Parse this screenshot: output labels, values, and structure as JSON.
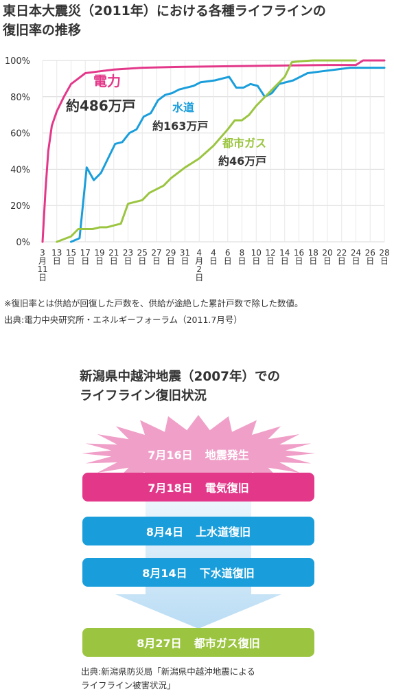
{
  "header": {
    "title_line1": "東日本大震災（2011年）における各種ライフラインの",
    "title_line2": "復旧率の推移"
  },
  "chart_data": {
    "type": "line",
    "title": "東日本大震災（2011年）における各種ライフラインの復旧率の推移",
    "y_ticks": [
      "0%",
      "20%",
      "40%",
      "60%",
      "80%",
      "100%"
    ],
    "ylim": [
      0,
      100
    ],
    "x_ticks": [
      {
        "day": 0,
        "label": "3月11日"
      },
      {
        "day": 2,
        "label": "13日"
      },
      {
        "day": 4,
        "label": "15日"
      },
      {
        "day": 6,
        "label": "17日"
      },
      {
        "day": 8,
        "label": "19日"
      },
      {
        "day": 10,
        "label": "21日"
      },
      {
        "day": 12,
        "label": "23日"
      },
      {
        "day": 14,
        "label": "25日"
      },
      {
        "day": 16,
        "label": "27日"
      },
      {
        "day": 18,
        "label": "29日"
      },
      {
        "day": 20,
        "label": "31日"
      },
      {
        "day": 22,
        "label": "4月2日"
      },
      {
        "day": 24,
        "label": "4日"
      },
      {
        "day": 26,
        "label": "6日"
      },
      {
        "day": 28,
        "label": "8日"
      },
      {
        "day": 30,
        "label": "10日"
      },
      {
        "day": 32,
        "label": "12日"
      },
      {
        "day": 34,
        "label": "14日"
      },
      {
        "day": 36,
        "label": "16日"
      },
      {
        "day": 38,
        "label": "18日"
      },
      {
        "day": 40,
        "label": "20日"
      },
      {
        "day": 42,
        "label": "22日"
      },
      {
        "day": 44,
        "label": "24日"
      },
      {
        "day": 46,
        "label": "26日"
      },
      {
        "day": 48,
        "label": "28日"
      }
    ],
    "grid": true,
    "series": [
      {
        "name": "電力",
        "households": "約486万戸",
        "color": "#e3388a",
        "points": [
          [
            0,
            0
          ],
          [
            0.4,
            28
          ],
          [
            0.8,
            50
          ],
          [
            1.3,
            64
          ],
          [
            2,
            72
          ],
          [
            3,
            80
          ],
          [
            4,
            87
          ],
          [
            5,
            90
          ],
          [
            6,
            93
          ],
          [
            8,
            94
          ],
          [
            10,
            95
          ],
          [
            14,
            96
          ],
          [
            20,
            96.5
          ],
          [
            30,
            97
          ],
          [
            40,
            97.5
          ],
          [
            44,
            97.5
          ],
          [
            45,
            100
          ],
          [
            48,
            100
          ]
        ]
      },
      {
        "name": "水道",
        "households": "約163万戸",
        "color": "#1a9edb",
        "points": [
          [
            4,
            0
          ],
          [
            5.2,
            2
          ],
          [
            6.2,
            41
          ],
          [
            7.2,
            34
          ],
          [
            8.2,
            38
          ],
          [
            9.2,
            46
          ],
          [
            10.2,
            54
          ],
          [
            11.2,
            55
          ],
          [
            12.2,
            60
          ],
          [
            13.2,
            62
          ],
          [
            14.2,
            69
          ],
          [
            15.2,
            71
          ],
          [
            16.2,
            78
          ],
          [
            17.2,
            81
          ],
          [
            18.2,
            82
          ],
          [
            19.2,
            84
          ],
          [
            20.2,
            85
          ],
          [
            21.2,
            86
          ],
          [
            22.2,
            88
          ],
          [
            24.2,
            89
          ],
          [
            26.2,
            91
          ],
          [
            27.2,
            85
          ],
          [
            28.2,
            85
          ],
          [
            29.2,
            87
          ],
          [
            30.2,
            86
          ],
          [
            31.2,
            80
          ],
          [
            32.2,
            82
          ],
          [
            33.2,
            87
          ],
          [
            35.2,
            89
          ],
          [
            37.2,
            93
          ],
          [
            39.2,
            94
          ],
          [
            41.2,
            95
          ],
          [
            43.2,
            96
          ],
          [
            45.2,
            96
          ],
          [
            48,
            96
          ]
        ]
      },
      {
        "name": "都市ガス",
        "households": "約46万戸",
        "color": "#9bc540",
        "points": [
          [
            2,
            0
          ],
          [
            4,
            3
          ],
          [
            5,
            7
          ],
          [
            6,
            7
          ],
          [
            7,
            7
          ],
          [
            8,
            8
          ],
          [
            9,
            8
          ],
          [
            10,
            9
          ],
          [
            11,
            10
          ],
          [
            12,
            21
          ],
          [
            13,
            22
          ],
          [
            14,
            23
          ],
          [
            15,
            27
          ],
          [
            16,
            29
          ],
          [
            17,
            31
          ],
          [
            18,
            35
          ],
          [
            20,
            41
          ],
          [
            22,
            46
          ],
          [
            24,
            53
          ],
          [
            26,
            62
          ],
          [
            27,
            67
          ],
          [
            28,
            67
          ],
          [
            29,
            70
          ],
          [
            30,
            75
          ],
          [
            32,
            83
          ],
          [
            34,
            91
          ],
          [
            35,
            99
          ],
          [
            36,
            99.5
          ],
          [
            38,
            100
          ],
          [
            44,
            100
          ]
        ]
      }
    ]
  },
  "labels": {
    "electric_name": "電力",
    "electric_households": "約486万戸",
    "water_name": "水道",
    "water_households": "約163万戸",
    "gas_name": "都市ガス",
    "gas_households": "約46万戸"
  },
  "notes": {
    "note1": "※復旧率とは供給が回復した戸数を、供給が途絶した累計戸数で除した数値。",
    "note2": "出典:電力中央研究所・エネルギーフォーラム（2011.7月号）"
  },
  "niigata": {
    "title_line1": "新潟県中越沖地震（2007年）での",
    "title_line2": "ライフライン復旧状況",
    "events": [
      {
        "date": "7月16日",
        "label": "地震発生",
        "color": "#f0a0c8"
      },
      {
        "date": "7月18日",
        "label": "電気復旧",
        "color": "#e3388a"
      },
      {
        "date": "8月4日",
        "label": "上水道復旧",
        "color": "#1a9edb"
      },
      {
        "date": "8月14日",
        "label": "下水道復旧",
        "color": "#1a9edb"
      },
      {
        "date": "8月27日",
        "label": "都市ガス復旧",
        "color": "#9bc540"
      }
    ],
    "source_line1": "出典:新潟県防災局「新潟県中越沖地震による",
    "source_line2": "ライフライン被害状況」"
  }
}
